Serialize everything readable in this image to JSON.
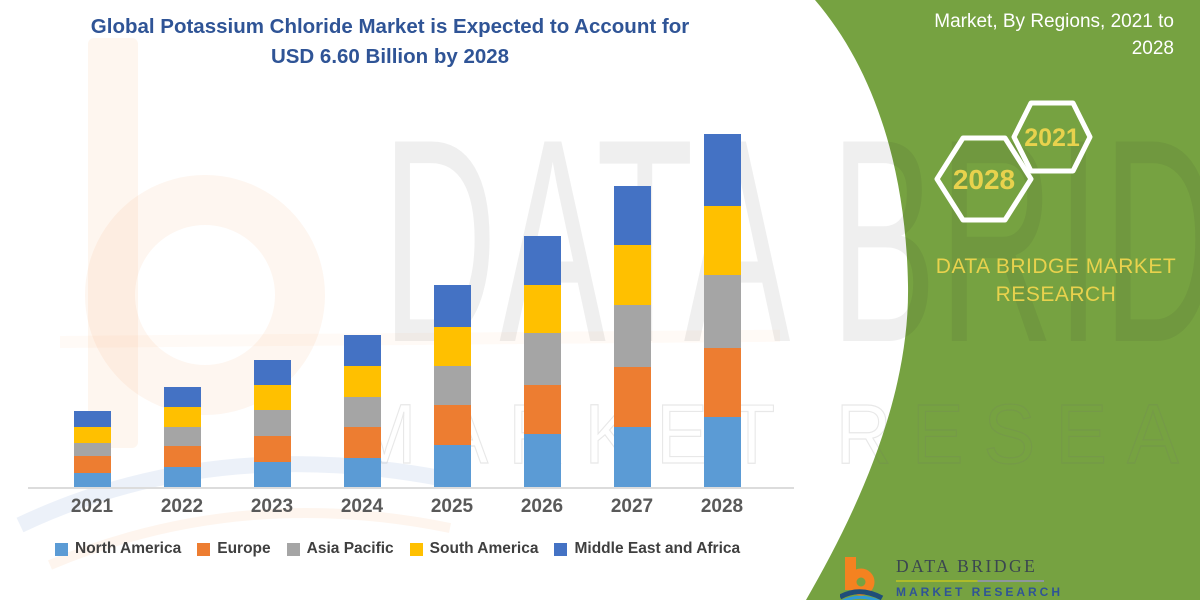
{
  "title": {
    "lines": [
      "Global Potassium Chloride Market is Expected to Account for",
      "USD 6.60 Billion by 2028"
    ]
  },
  "side_panel": {
    "heading_lines": [
      "Market, By Regions, 2021 to",
      "2028"
    ],
    "hexagons": [
      {
        "label": "2028"
      },
      {
        "label": "2021"
      }
    ],
    "brand_text": "DATA BRIDGE MARKET RESEARCH",
    "colors": {
      "panel_green": "#76A241",
      "hexagon_outline": "#FFFFFF",
      "hexagon_label_yellow": "#E8D24D"
    }
  },
  "watermarks": {
    "background_text_top": "DATA BRIDGE",
    "background_text_bottom": "MARKET RESEARCH"
  },
  "chart_data": {
    "type": "bar",
    "stacked": true,
    "unit": "USD Billion",
    "categories": [
      "2021",
      "2022",
      "2023",
      "2024",
      "2025",
      "2026",
      "2027",
      "2028"
    ],
    "series": [
      {
        "name": "North America",
        "color": "#5B9BD5",
        "values": [
          0.26,
          0.37,
          0.47,
          0.54,
          0.79,
          0.99,
          1.12,
          1.3
        ]
      },
      {
        "name": "Europe",
        "color": "#ED7D31",
        "values": [
          0.32,
          0.39,
          0.49,
          0.58,
          0.75,
          0.92,
          1.12,
          1.29
        ]
      },
      {
        "name": "Asia Pacific",
        "color": "#A5A5A5",
        "values": [
          0.24,
          0.37,
          0.47,
          0.56,
          0.73,
          0.97,
          1.16,
          1.37
        ]
      },
      {
        "name": "South America",
        "color": "#FFC000",
        "values": [
          0.3,
          0.37,
          0.47,
          0.58,
          0.73,
          0.9,
          1.12,
          1.29
        ]
      },
      {
        "name": "Middle East and Africa",
        "color": "#4472C4",
        "values": [
          0.3,
          0.37,
          0.47,
          0.58,
          0.77,
          0.92,
          1.1,
          1.35
        ]
      }
    ],
    "totals": [
      1.42,
      1.87,
      2.37,
      2.84,
      3.77,
      4.7,
      5.62,
      6.6
    ],
    "ylim": [
      0,
      6.6
    ],
    "y_axis_visible": false,
    "grid": false,
    "legend_position": "bottom",
    "axis_line_color": "#DCDCDC",
    "category_label_color": "#595959"
  },
  "footer_logo": {
    "name_text": "DATA BRIDGE",
    "sub_text": "MARKET RESEARCH"
  }
}
